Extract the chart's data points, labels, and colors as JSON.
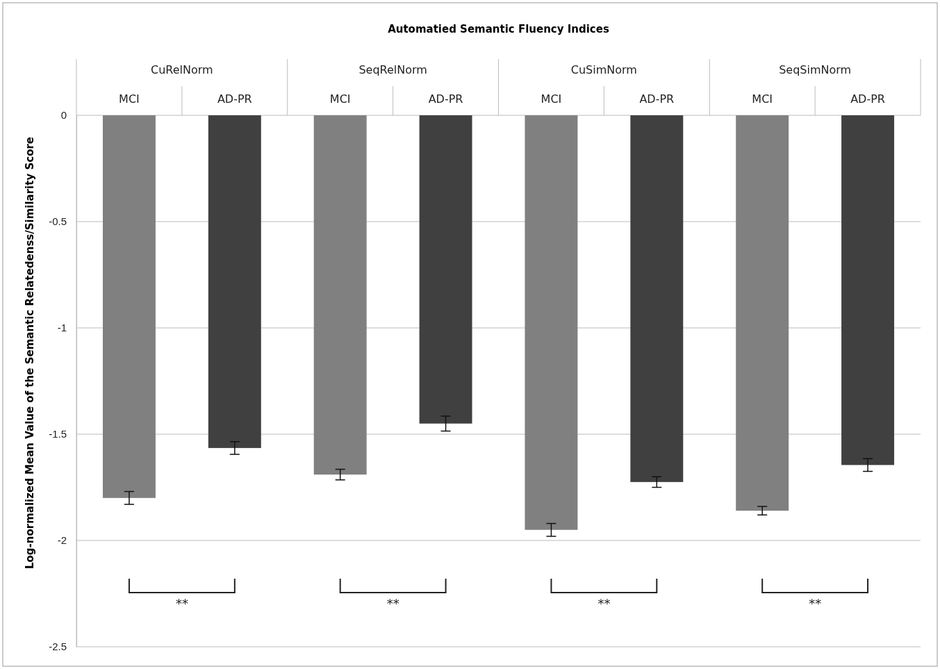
{
  "chart_data": {
    "type": "bar",
    "title": "Automatied Semantic Fluency Indices",
    "ylabel": "Log-normalized Mean Value of the Semantic Relatedenss/Similarity Score",
    "categories": [
      "MCI",
      "AD-PR",
      "MCI",
      "AD-PR",
      "MCI",
      "AD-PR",
      "MCI",
      "AD-PR"
    ],
    "values": [
      -1.8,
      -1.565,
      -1.69,
      -1.45,
      -1.95,
      -1.725,
      -1.86,
      -1.645
    ],
    "colors": [
      "#808080",
      "#404040",
      "#808080",
      "#404040",
      "#808080",
      "#404040",
      "#808080",
      "#404040"
    ],
    "errors": [
      0.03,
      0.03,
      0.025,
      0.035,
      0.03,
      0.025,
      0.02,
      0.03
    ],
    "ylim": [
      -2.5,
      0
    ],
    "yticks": [
      {
        "value": -2.5,
        "label": "-2.5"
      },
      {
        "value": -2,
        "label": "-2"
      },
      {
        "value": -1.5,
        "label": "-1.5"
      },
      {
        "value": -1,
        "label": "-1"
      },
      {
        "value": -0.5,
        "label": "-0.5"
      },
      0
    ],
    "grid": "y",
    "annotations": [
      "CuRelNorm",
      "SeqRelNorm",
      "CuSimNorm",
      "SeqSimNorm",
      "**",
      "**",
      "**",
      "**"
    ]
  }
}
